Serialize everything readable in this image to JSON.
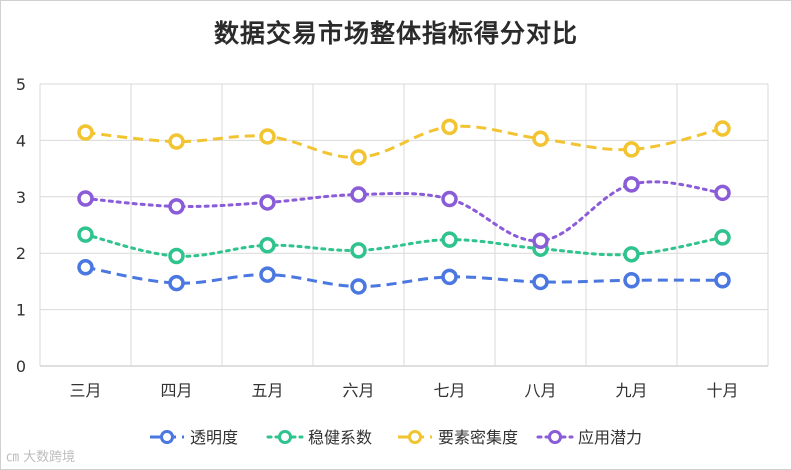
{
  "chart_data": {
    "type": "line",
    "title": "数据交易市场整体指标得分对比",
    "categories": [
      "三月",
      "四月",
      "五月",
      "六月",
      "七月",
      "八月",
      "九月",
      "十月"
    ],
    "ylim": [
      0,
      5
    ],
    "yticks": [
      "0",
      "1",
      "2",
      "3",
      "4",
      "5"
    ],
    "grid": true,
    "legend_position": "bottom",
    "series": [
      {
        "name": "透明度",
        "color": "#4a77e0",
        "dash": "dashed",
        "values": [
          1.75,
          1.47,
          1.62,
          1.41,
          1.58,
          1.49,
          1.52,
          1.52
        ]
      },
      {
        "name": "稳健系数",
        "color": "#2fc38e",
        "dash": "dotted",
        "values": [
          2.33,
          1.95,
          2.14,
          2.05,
          2.24,
          2.08,
          1.98,
          2.28
        ]
      },
      {
        "name": "要素密集度",
        "color": "#f2c431",
        "dash": "dashed",
        "values": [
          4.14,
          3.98,
          4.07,
          3.7,
          4.24,
          4.03,
          3.84,
          4.21
        ]
      },
      {
        "name": "应用潜力",
        "color": "#8a5cd8",
        "dash": "dotted",
        "values": [
          2.97,
          2.83,
          2.9,
          3.04,
          2.96,
          2.22,
          3.22,
          3.07
        ]
      }
    ]
  },
  "watermark": "大数跨境"
}
